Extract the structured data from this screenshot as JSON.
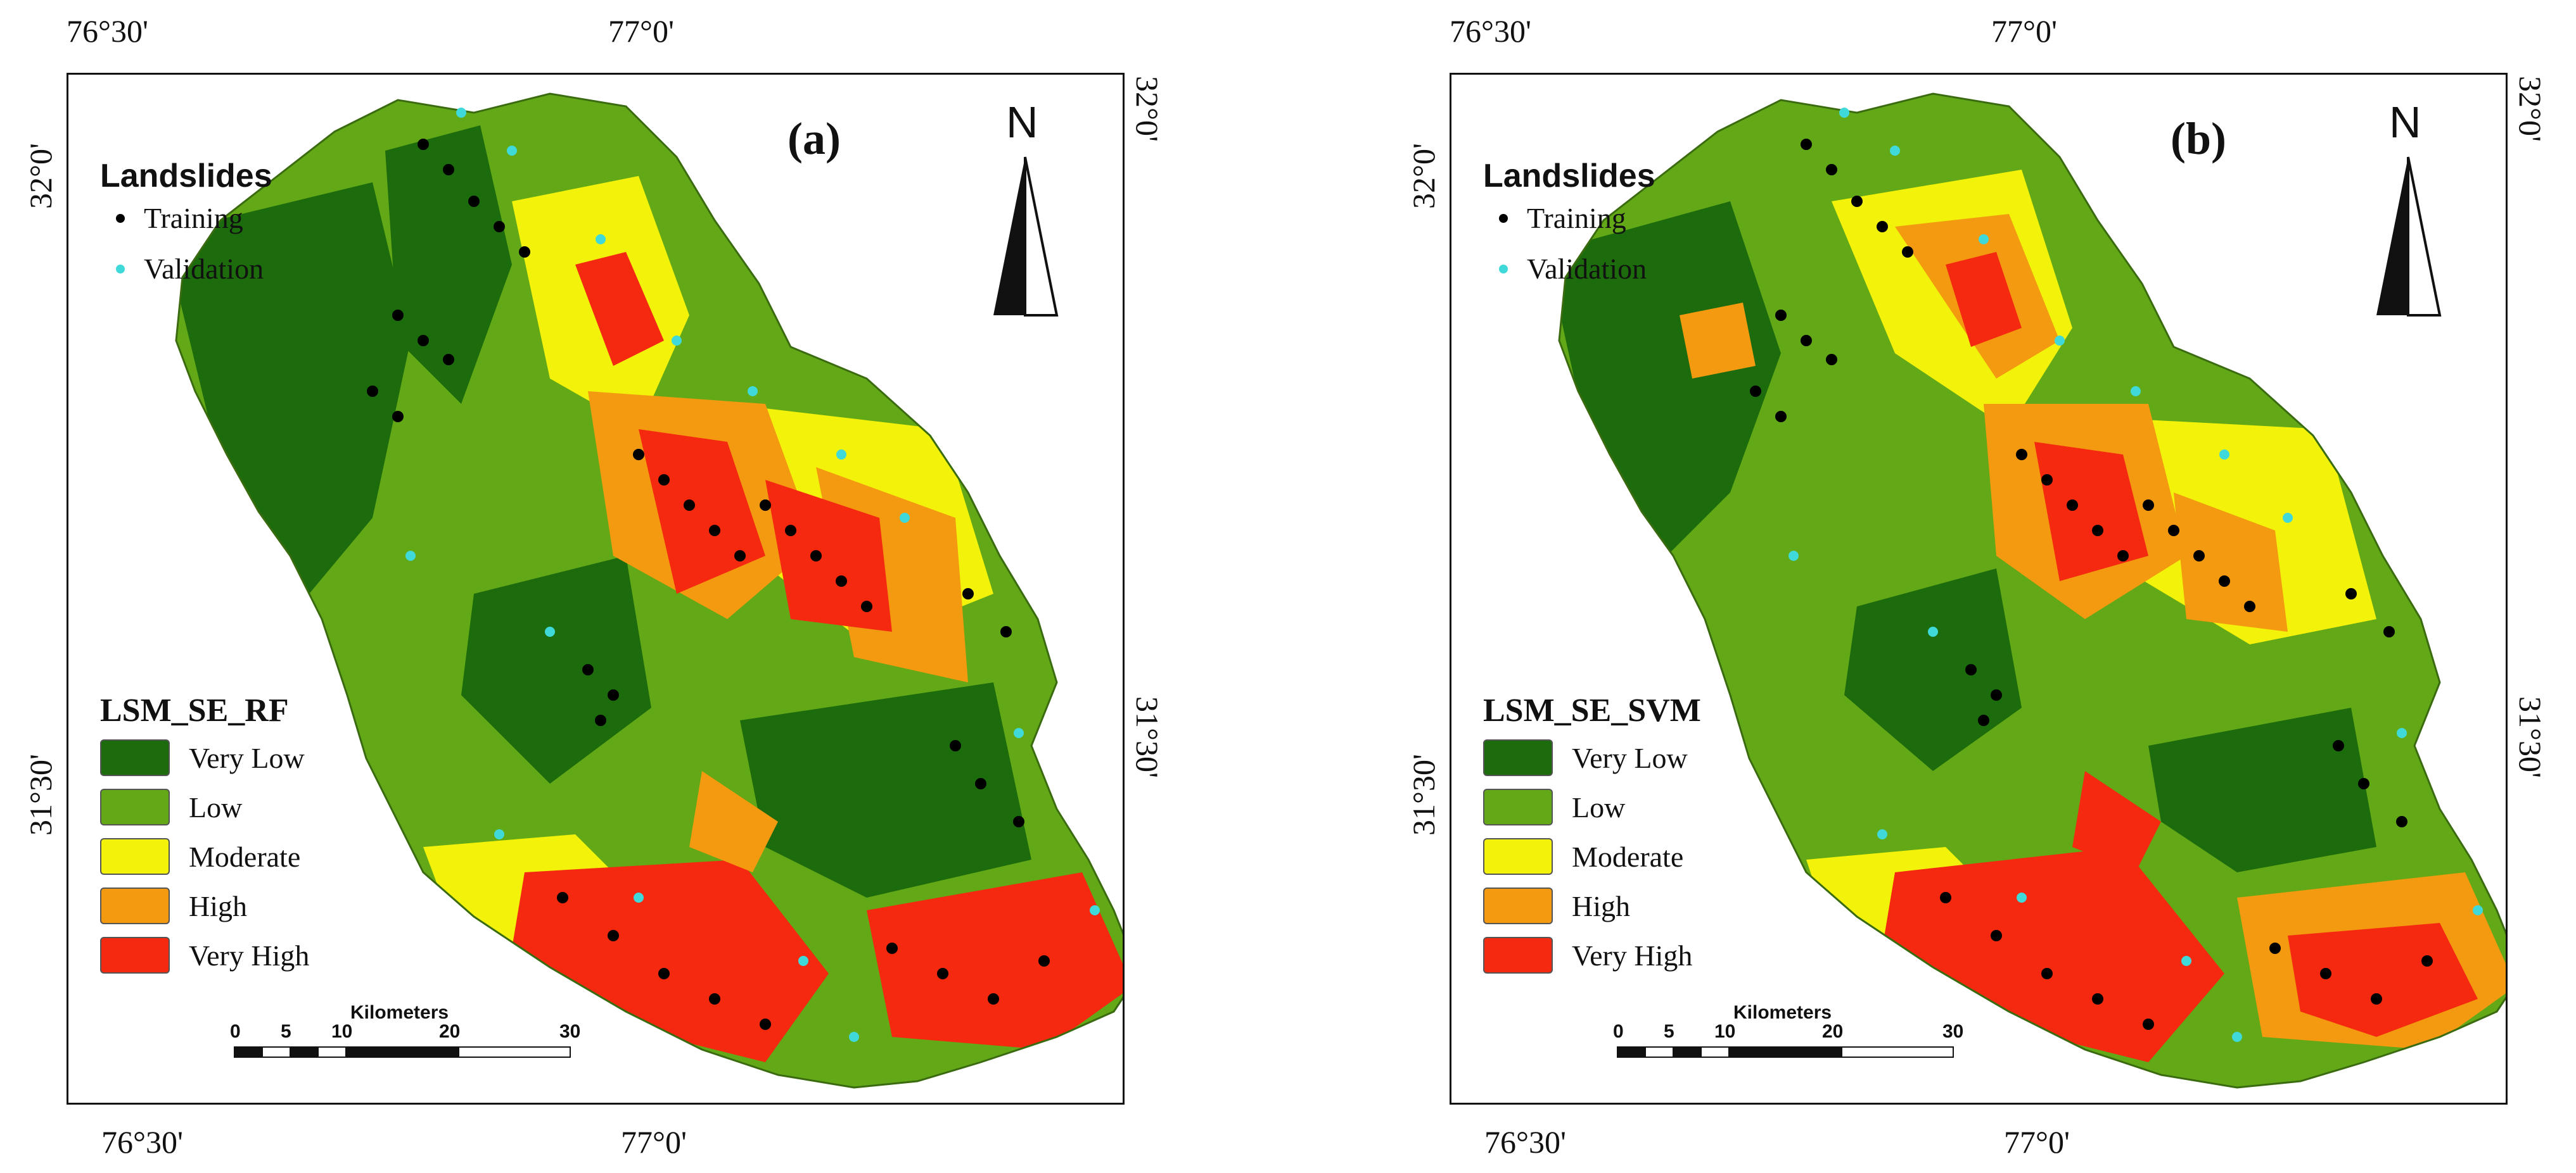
{
  "colors": {
    "very_low": "#1c6b0c",
    "low": "#63a816",
    "moderate": "#f2f20a",
    "high": "#f39a10",
    "very_high": "#f4290f",
    "training_dot": "#000000",
    "validation_dot": "#3fd9d9"
  },
  "panels": [
    {
      "label": "(a)",
      "north": "N",
      "legend_landslides_title": "Landslides",
      "training_label": "Training",
      "validation_label": "Validation",
      "lsm_title": "LSM_SE_RF",
      "classes": [
        "Very Low",
        "Low",
        "Moderate",
        "High",
        "Very High"
      ],
      "scalebar": {
        "title": "Kilometers",
        "ticks": [
          "0",
          "5",
          "10",
          "20",
          "30"
        ]
      },
      "coords": {
        "top_left": "76°30'",
        "top_mid": "77°0'",
        "bottom_left": "76°30'",
        "bottom_mid": "77°0'",
        "left_top": "32°0'",
        "left_bottom": "31°30'",
        "right_top": "32°0'",
        "right_bottom": "31°30'"
      }
    },
    {
      "label": "(b)",
      "north": "N",
      "legend_landslides_title": "Landslides",
      "training_label": "Training",
      "validation_label": "Validation",
      "lsm_title": "LSM_SE_SVM",
      "classes": [
        "Very Low",
        "Low",
        "Moderate",
        "High",
        "Very High"
      ],
      "scalebar": {
        "title": "Kilometers",
        "ticks": [
          "0",
          "5",
          "10",
          "20",
          "30"
        ]
      },
      "coords": {
        "top_left": "76°30'",
        "top_mid": "77°0'",
        "bottom_left": "76°30'",
        "bottom_mid": "77°0'",
        "left_top": "32°0'",
        "left_bottom": "31°30'",
        "right_top": "32°0'",
        "right_bottom": "31°30'"
      }
    }
  ]
}
